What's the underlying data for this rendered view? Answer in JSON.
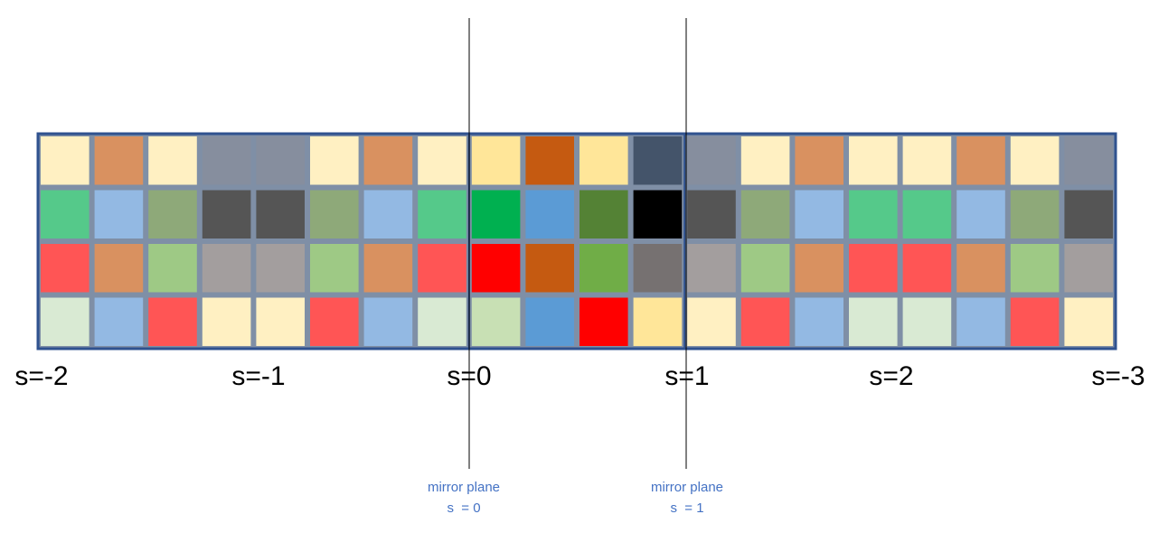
{
  "palette": {
    "grid_border": "#2f528f",
    "cell_gap": "#7f8fa6",
    "mirror_line": "#000000",
    "label_text": "#000000",
    "plane_text": "#4472c4"
  },
  "grid": {
    "columns": 20,
    "rows": [
      [
        "#fff0c2",
        "#d99160",
        "#fff0c2",
        "#868e9e",
        "#868e9e",
        "#fff0c2",
        "#d99160",
        "#fff0c2",
        "#ffe699",
        "#c55a11",
        "#ffe699",
        "#44546a",
        "#868e9e",
        "#fff0c2",
        "#d99160",
        "#fff0c2",
        "#fff0c2",
        "#d99160",
        "#fff0c2",
        "#868e9e"
      ],
      [
        "#55c98a",
        "#93b9e3",
        "#8ea979",
        "#555555",
        "#555555",
        "#8ea979",
        "#93b9e3",
        "#55c98a",
        "#00b050",
        "#5b9bd5",
        "#548235",
        "#000000",
        "#555555",
        "#8ea979",
        "#93b9e3",
        "#55c98a",
        "#55c98a",
        "#93b9e3",
        "#8ea979",
        "#555555"
      ],
      [
        "#ff5555",
        "#d99160",
        "#9ec985",
        "#a39e9e",
        "#a39e9e",
        "#9ec985",
        "#d99160",
        "#ff5555",
        "#ff0000",
        "#c55a11",
        "#70ad47",
        "#767171",
        "#a39e9e",
        "#9ec985",
        "#d99160",
        "#ff5555",
        "#ff5555",
        "#d99160",
        "#9ec985",
        "#a39e9e"
      ],
      [
        "#d9ead3",
        "#93b9e3",
        "#ff5555",
        "#fff0c2",
        "#fff0c2",
        "#ff5555",
        "#93b9e3",
        "#d9ead3",
        "#c8e0b4",
        "#5b9bd5",
        "#ff0000",
        "#ffe699",
        "#fff0c2",
        "#ff5555",
        "#93b9e3",
        "#d9ead3",
        "#d9ead3",
        "#93b9e3",
        "#ff5555",
        "#fff0c2"
      ]
    ]
  },
  "s_labels": [
    "s=-2",
    "s=-1",
    "s=0",
    "s=1",
    "s=2",
    "s=-3"
  ],
  "mirror_planes": [
    {
      "line1": "mirror plane",
      "line2": "s  = 0"
    },
    {
      "line1": "mirror plane",
      "line2": "s  = 1"
    }
  ]
}
